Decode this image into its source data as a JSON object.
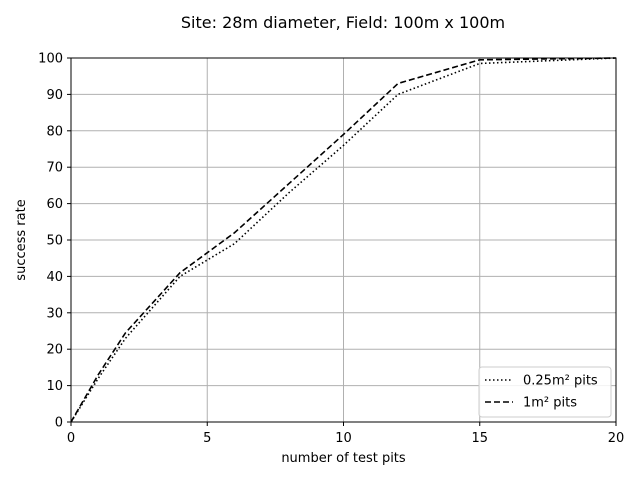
{
  "chart_data": {
    "type": "line",
    "title": "Site: 28m diameter, Field: 100m x 100m",
    "xlabel": "number of test pits",
    "ylabel": "success rate",
    "xlim": [
      0,
      20
    ],
    "ylim": [
      0,
      100
    ],
    "xticks": [
      0,
      5,
      10,
      15,
      20
    ],
    "yticks": [
      0,
      10,
      20,
      30,
      40,
      50,
      60,
      70,
      80,
      90,
      100
    ],
    "grid": true,
    "legend_position": "lower-right",
    "series": [
      {
        "name": "0.25m² pits",
        "style": "dotted",
        "color": "#000000",
        "x": [
          0,
          1,
          2,
          4,
          6,
          8,
          10,
          12,
          15,
          20
        ],
        "y": [
          0,
          12,
          23,
          40,
          49,
          63,
          76,
          90,
          98.5,
          100
        ]
      },
      {
        "name": "1m² pits",
        "style": "dashed",
        "color": "#000000",
        "x": [
          0,
          1,
          2,
          4,
          6,
          8,
          10,
          12,
          15,
          20
        ],
        "y": [
          0,
          13,
          24.5,
          41,
          52,
          65.5,
          79,
          93,
          99.5,
          100
        ]
      }
    ]
  }
}
